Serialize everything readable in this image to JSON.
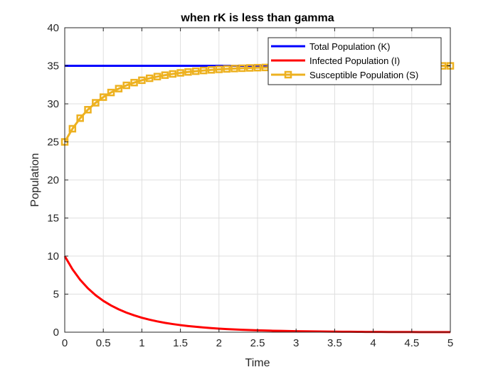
{
  "chart_data": {
    "type": "line",
    "title": "when rK is less than gamma",
    "xlabel": "Time",
    "ylabel": "Population",
    "xlim": [
      0,
      5
    ],
    "ylim": [
      0,
      40
    ],
    "xticks": [
      0,
      0.5,
      1,
      1.5,
      2,
      2.5,
      3,
      3.5,
      4,
      4.5,
      5
    ],
    "xtick_labels": [
      "0",
      "0.5",
      "1",
      "1.5",
      "2",
      "2.5",
      "3",
      "3.5",
      "4",
      "4.5",
      "5"
    ],
    "yticks": [
      0,
      5,
      10,
      15,
      20,
      25,
      30,
      35,
      40
    ],
    "ytick_labels": [
      "0",
      "5",
      "10",
      "15",
      "20",
      "25",
      "30",
      "35",
      "40"
    ],
    "grid": true,
    "legend_position": "top-right",
    "x": [
      0,
      0.1,
      0.2,
      0.3,
      0.4,
      0.5,
      0.6,
      0.7,
      0.8,
      0.9,
      1.0,
      1.1,
      1.2,
      1.3,
      1.4,
      1.5,
      1.6,
      1.7,
      1.8,
      1.9,
      2.0,
      2.1,
      2.2,
      2.3,
      2.4,
      2.5,
      2.6,
      2.7,
      2.8,
      2.9,
      3.0,
      3.1,
      3.2,
      3.3,
      3.4,
      3.5,
      3.6,
      3.7,
      3.8,
      3.9,
      4.0,
      4.1,
      4.2,
      4.3,
      4.4,
      4.5,
      4.6,
      4.7,
      4.8,
      4.9,
      5.0
    ],
    "series": [
      {
        "name": "Total Population (K)",
        "color": "#0000ff",
        "marker": "none",
        "values": [
          35,
          35,
          35,
          35,
          35,
          35,
          35,
          35,
          35,
          35,
          35,
          35,
          35,
          35,
          35,
          35,
          35,
          35,
          35,
          35,
          35,
          35,
          35,
          35,
          35,
          35,
          35,
          35,
          35,
          35,
          35,
          35,
          35,
          35,
          35,
          35,
          35,
          35,
          35,
          35,
          35,
          35,
          35,
          35,
          35,
          35,
          35,
          35,
          35,
          35,
          35
        ]
      },
      {
        "name": "Infected Population (I)",
        "color": "#ff0000",
        "marker": "none",
        "values": [
          10.0,
          8.27,
          6.88,
          5.77,
          4.86,
          4.12,
          3.51,
          3.0,
          2.57,
          2.21,
          1.9,
          1.64,
          1.42,
          1.23,
          1.07,
          0.93,
          0.81,
          0.71,
          0.62,
          0.54,
          0.47,
          0.41,
          0.36,
          0.32,
          0.28,
          0.25,
          0.22,
          0.19,
          0.17,
          0.15,
          0.13,
          0.12,
          0.1,
          0.09,
          0.08,
          0.07,
          0.06,
          0.055,
          0.05,
          0.04,
          0.035,
          0.03,
          0.027,
          0.024,
          0.021,
          0.018,
          0.016,
          0.014,
          0.012,
          0.011,
          0.01
        ]
      },
      {
        "name": "Susceptible Population  (S)",
        "color": "#edb120",
        "marker": "square",
        "values": [
          25.0,
          26.73,
          28.12,
          29.23,
          30.14,
          30.88,
          31.49,
          32.0,
          32.43,
          32.79,
          33.1,
          33.36,
          33.58,
          33.77,
          33.93,
          34.07,
          34.19,
          34.29,
          34.38,
          34.46,
          34.53,
          34.59,
          34.64,
          34.68,
          34.72,
          34.75,
          34.78,
          34.81,
          34.83,
          34.85,
          34.87,
          34.88,
          34.9,
          34.91,
          34.92,
          34.93,
          34.94,
          34.945,
          34.95,
          34.96,
          34.965,
          34.97,
          34.973,
          34.976,
          34.979,
          34.982,
          34.984,
          34.986,
          34.988,
          34.989,
          34.99
        ]
      }
    ]
  }
}
